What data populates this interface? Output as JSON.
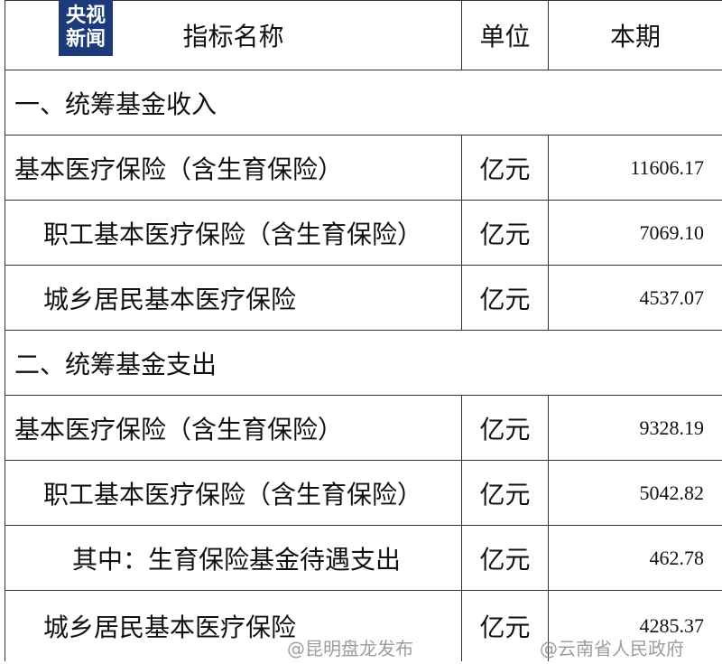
{
  "logo": {
    "line1": "央视",
    "line2": "新闻"
  },
  "table": {
    "header": [
      "指标名称",
      "单位",
      "本期"
    ],
    "rows": [
      [
        "一、统筹基金收入"
      ],
      [
        "基本医疗保险（含生育保险）",
        "亿元",
        "11606.17"
      ],
      [
        "职工基本医疗保险（含生育保险）",
        "亿元",
        "7069.10"
      ],
      [
        "城乡居民基本医疗保险",
        "亿元",
        "4537.07"
      ],
      [
        "二、统筹基金支出"
      ],
      [
        "基本医疗保险（含生育保险）",
        "亿元",
        "9328.19"
      ],
      [
        "职工基本医疗保险（含生育保险）",
        "亿元",
        "5042.82"
      ],
      [
        "其中：生育保险基金待遇支出",
        "亿元",
        "462.78"
      ],
      [
        "城乡居民基本医疗保险",
        "亿元",
        "4285.37"
      ]
    ]
  },
  "watermarks": [
    "@昆明盘龙发布",
    "@云南省人民政府"
  ]
}
